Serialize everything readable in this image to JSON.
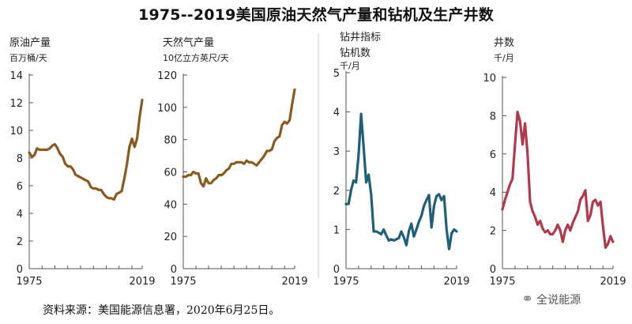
{
  "title": "1975--2019美国原油天然气产量和钻机及生产井数",
  "source": "资料来源：美国能源信息署，2020年6月25日。",
  "watermark": "全说能源",
  "chart_data": [
    {
      "type": "line",
      "title_lines": [
        "原油产量",
        "百万桶/天"
      ],
      "color": "#8a5a1e",
      "ylim": [
        0,
        14
      ],
      "yticks": [
        0,
        2,
        4,
        6,
        8,
        10,
        12,
        14
      ],
      "xlim": [
        1975,
        2019
      ],
      "xticks": [
        1975,
        2019
      ],
      "series": [
        {
          "x": [
            1975,
            1976,
            1977,
            1978,
            1979,
            1980,
            1981,
            1982,
            1983,
            1984,
            1985,
            1986,
            1987,
            1988,
            1989,
            1990,
            1991,
            1992,
            1993,
            1994,
            1995,
            1996,
            1997,
            1998,
            1999,
            2000,
            2001,
            2002,
            2003,
            2004,
            2005,
            2006,
            2007,
            2008,
            2009,
            2010,
            2011,
            2012,
            2013,
            2014,
            2015,
            2016,
            2017,
            2018,
            2019
          ],
          "y": [
            8.4,
            8.1,
            8.2,
            8.7,
            8.6,
            8.6,
            8.6,
            8.6,
            8.7,
            8.9,
            9.0,
            8.7,
            8.3,
            8.1,
            7.6,
            7.4,
            7.4,
            7.2,
            6.8,
            6.7,
            6.6,
            6.5,
            6.4,
            6.3,
            5.9,
            5.8,
            5.8,
            5.7,
            5.7,
            5.4,
            5.2,
            5.1,
            5.1,
            5.0,
            5.4,
            5.5,
            5.6,
            6.5,
            7.5,
            8.8,
            9.4,
            8.8,
            9.4,
            11.0,
            12.2
          ]
        }
      ]
    },
    {
      "type": "line",
      "title_lines": [
        "天然气产量",
        "10亿立方英尺/天"
      ],
      "color": "#8a5a1e",
      "ylim": [
        0,
        120
      ],
      "yticks": [
        0,
        20,
        40,
        60,
        80,
        100,
        120
      ],
      "xlim": [
        1975,
        2019
      ],
      "xticks": [
        1975,
        2019
      ],
      "series": [
        {
          "x": [
            1975,
            1976,
            1977,
            1978,
            1979,
            1980,
            1981,
            1982,
            1983,
            1984,
            1985,
            1986,
            1987,
            1988,
            1989,
            1990,
            1991,
            1992,
            1993,
            1994,
            1995,
            1996,
            1997,
            1998,
            1999,
            2000,
            2001,
            2002,
            2003,
            2004,
            2005,
            2006,
            2007,
            2008,
            2009,
            2010,
            2011,
            2012,
            2013,
            2014,
            2015,
            2016,
            2017,
            2018,
            2019
          ],
          "y": [
            57,
            57,
            58,
            58,
            60,
            59,
            59,
            53,
            51,
            56,
            53,
            53,
            55,
            56,
            58,
            58,
            59,
            61,
            62,
            65,
            65,
            66,
            66,
            66,
            65,
            67,
            66,
            66,
            65,
            64,
            66,
            68,
            70,
            73,
            73,
            74,
            79,
            81,
            82,
            89,
            91,
            90,
            92,
            102,
            111
          ]
        }
      ]
    },
    {
      "type": "line",
      "title_lines": [
        "钻井指标",
        "钻机数",
        "千/月"
      ],
      "color": "#1f5f78",
      "ylim": [
        0,
        5
      ],
      "yticks": [
        0,
        1,
        2,
        3,
        4,
        5
      ],
      "xlim": [
        1975,
        2019
      ],
      "xticks": [
        1975,
        2019
      ],
      "series": [
        {
          "x": [
            1975,
            1976,
            1977,
            1978,
            1979,
            1980,
            1981,
            1982,
            1983,
            1984,
            1985,
            1986,
            1987,
            1988,
            1989,
            1990,
            1991,
            1992,
            1993,
            1994,
            1995,
            1996,
            1997,
            1998,
            1999,
            2000,
            2001,
            2002,
            2003,
            2004,
            2005,
            2006,
            2007,
            2008,
            2009,
            2010,
            2011,
            2012,
            2013,
            2014,
            2015,
            2016,
            2017,
            2018,
            2019
          ],
          "y": [
            1.65,
            1.65,
            2.0,
            2.25,
            2.2,
            2.9,
            3.95,
            3.1,
            2.2,
            2.4,
            1.9,
            0.95,
            0.95,
            0.92,
            0.88,
            1.0,
            0.85,
            0.72,
            0.75,
            0.72,
            0.75,
            0.78,
            0.95,
            0.8,
            0.6,
            0.95,
            1.15,
            0.82,
            1.0,
            1.2,
            1.35,
            1.6,
            1.75,
            1.88,
            1.05,
            1.6,
            1.85,
            1.9,
            1.75,
            1.85,
            1.0,
            0.5,
            0.9,
            1.0,
            0.95
          ]
        }
      ]
    },
    {
      "type": "line",
      "title_lines": [
        "井数",
        "千/月"
      ],
      "color": "#b03a4a",
      "ylim": [
        0,
        10
      ],
      "yticks": [
        0,
        2,
        4,
        6,
        8,
        10
      ],
      "xlim": [
        1975,
        2019
      ],
      "xticks": [
        1975,
        2019
      ],
      "series": [
        {
          "x": [
            1975,
            1976,
            1977,
            1978,
            1979,
            1980,
            1981,
            1982,
            1983,
            1984,
            1985,
            1986,
            1987,
            1988,
            1989,
            1990,
            1991,
            1992,
            1993,
            1994,
            1995,
            1996,
            1997,
            1998,
            1999,
            2000,
            2001,
            2002,
            2003,
            2004,
            2005,
            2006,
            2007,
            2008,
            2009,
            2010,
            2011,
            2012,
            2013,
            2014,
            2015,
            2016,
            2017,
            2018,
            2019
          ],
          "y": [
            3.1,
            3.6,
            4.0,
            4.4,
            4.7,
            6.5,
            8.2,
            7.7,
            6.5,
            7.6,
            6.0,
            3.5,
            3.0,
            2.7,
            2.3,
            2.5,
            2.1,
            1.9,
            2.0,
            1.8,
            1.8,
            2.0,
            2.3,
            2.0,
            1.4,
            2.0,
            2.3,
            2.0,
            2.4,
            2.7,
            3.0,
            3.6,
            3.8,
            4.1,
            2.5,
            2.8,
            3.5,
            3.6,
            3.3,
            3.5,
            2.2,
            1.1,
            1.3,
            1.7,
            1.4
          ]
        }
      ]
    }
  ]
}
